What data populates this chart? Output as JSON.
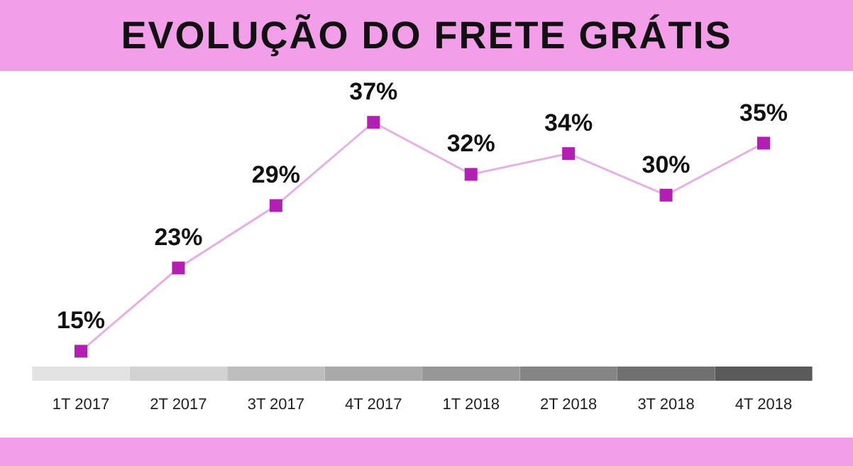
{
  "chart_data": {
    "type": "line",
    "title": "EVOLUÇÃO DO FRETE GRÁTIS",
    "categories": [
      "1T 2017",
      "2T 2017",
      "3T 2017",
      "4T 2017",
      "1T 2018",
      "2T 2018",
      "3T 2018",
      "4T 2018"
    ],
    "series": [
      {
        "color": "#b31fb3",
        "values": [
          15,
          23,
          29,
          37,
          32,
          34,
          30,
          35
        ],
        "value_labels": [
          "15%",
          "23%",
          "29%",
          "37%",
          "32%",
          "34%",
          "30%",
          "35%"
        ]
      }
    ],
    "marker": "square",
    "grid": false,
    "legend": false
  }
}
